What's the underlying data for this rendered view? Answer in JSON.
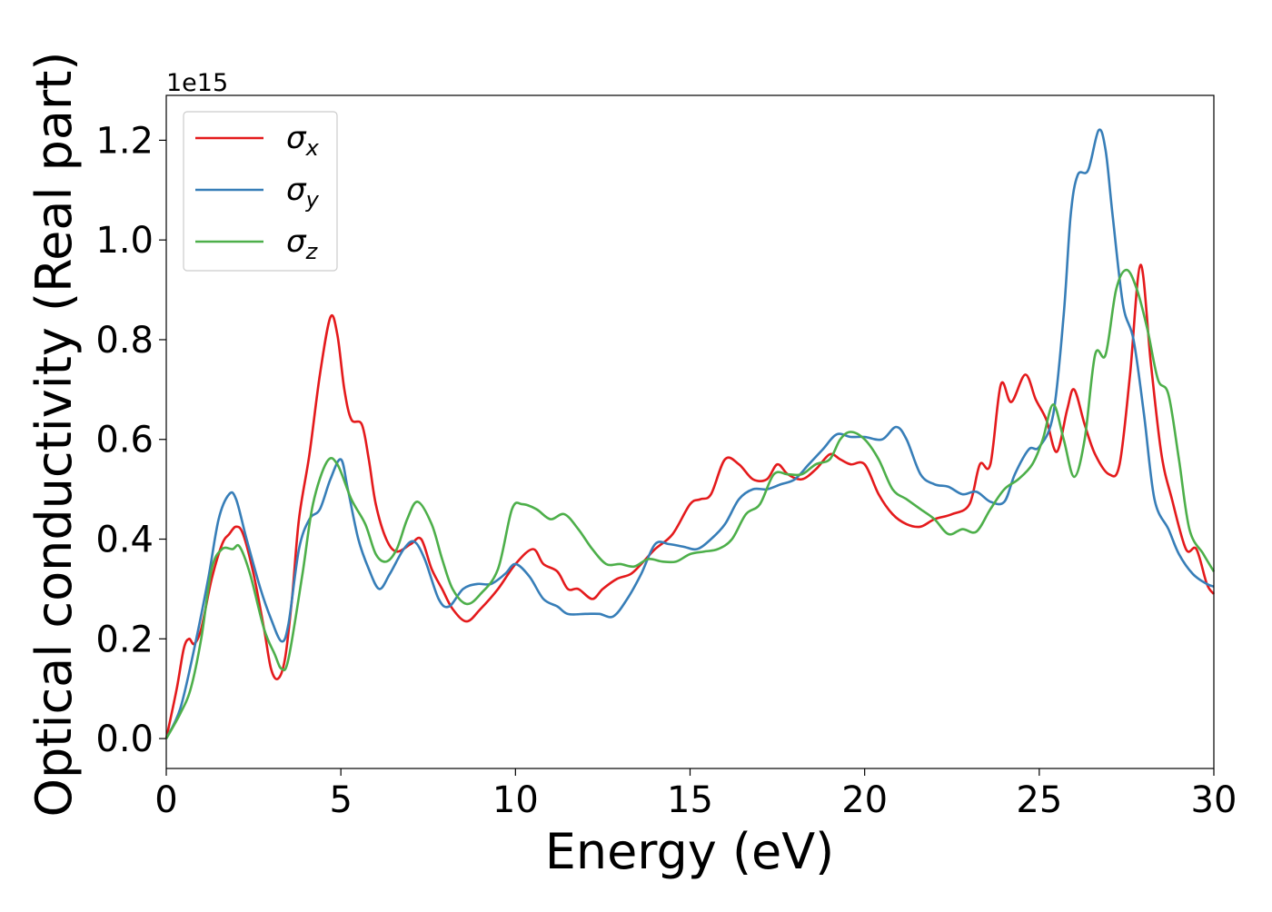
{
  "chart_data": {
    "type": "line",
    "xlabel": "Energy (eV)",
    "ylabel": "Optical conductivity (Real part)",
    "y_offset_text": "1e15",
    "xlim": [
      0,
      30
    ],
    "ylim": [
      -0.06,
      1.29
    ],
    "x_ticks": [
      0,
      5,
      10,
      15,
      20,
      25,
      30
    ],
    "x_tick_labels": [
      "0",
      "5",
      "10",
      "15",
      "20",
      "25",
      "30"
    ],
    "y_ticks": [
      0.0,
      0.2,
      0.4,
      0.6,
      0.8,
      1.0,
      1.2
    ],
    "y_tick_labels": [
      "0.0",
      "0.2",
      "0.4",
      "0.6",
      "0.8",
      "1.0",
      "1.2"
    ],
    "grid": false,
    "legend_position": "top-left",
    "series": [
      {
        "name": "σx",
        "symbol": "σ",
        "subscript": "x",
        "color": "#e41a1c",
        "points": [
          [
            0.0,
            0.0
          ],
          [
            0.3,
            0.1
          ],
          [
            0.5,
            0.18
          ],
          [
            0.65,
            0.2
          ],
          [
            0.8,
            0.19
          ],
          [
            1.0,
            0.22
          ],
          [
            1.3,
            0.32
          ],
          [
            1.6,
            0.39
          ],
          [
            1.8,
            0.41
          ],
          [
            2.0,
            0.425
          ],
          [
            2.2,
            0.41
          ],
          [
            2.5,
            0.33
          ],
          [
            2.8,
            0.22
          ],
          [
            3.0,
            0.14
          ],
          [
            3.2,
            0.12
          ],
          [
            3.4,
            0.16
          ],
          [
            3.6,
            0.28
          ],
          [
            3.8,
            0.44
          ],
          [
            4.1,
            0.57
          ],
          [
            4.4,
            0.73
          ],
          [
            4.7,
            0.845
          ],
          [
            4.9,
            0.81
          ],
          [
            5.1,
            0.7
          ],
          [
            5.3,
            0.64
          ],
          [
            5.6,
            0.63
          ],
          [
            5.8,
            0.56
          ],
          [
            6.0,
            0.47
          ],
          [
            6.3,
            0.4
          ],
          [
            6.6,
            0.375
          ],
          [
            7.0,
            0.39
          ],
          [
            7.3,
            0.4
          ],
          [
            7.6,
            0.34
          ],
          [
            7.9,
            0.3
          ],
          [
            8.2,
            0.26
          ],
          [
            8.6,
            0.235
          ],
          [
            9.0,
            0.26
          ],
          [
            9.5,
            0.3
          ],
          [
            10.0,
            0.35
          ],
          [
            10.5,
            0.38
          ],
          [
            10.8,
            0.35
          ],
          [
            11.2,
            0.335
          ],
          [
            11.5,
            0.3
          ],
          [
            11.8,
            0.3
          ],
          [
            12.2,
            0.28
          ],
          [
            12.5,
            0.3
          ],
          [
            12.9,
            0.32
          ],
          [
            13.3,
            0.33
          ],
          [
            13.6,
            0.35
          ],
          [
            14.0,
            0.38
          ],
          [
            14.5,
            0.41
          ],
          [
            15.0,
            0.47
          ],
          [
            15.3,
            0.48
          ],
          [
            15.6,
            0.49
          ],
          [
            16.0,
            0.56
          ],
          [
            16.4,
            0.55
          ],
          [
            16.8,
            0.52
          ],
          [
            17.2,
            0.52
          ],
          [
            17.5,
            0.55
          ],
          [
            17.8,
            0.53
          ],
          [
            18.2,
            0.52
          ],
          [
            18.6,
            0.54
          ],
          [
            19.0,
            0.57
          ],
          [
            19.3,
            0.56
          ],
          [
            19.6,
            0.55
          ],
          [
            20.0,
            0.55
          ],
          [
            20.4,
            0.49
          ],
          [
            20.8,
            0.45
          ],
          [
            21.2,
            0.43
          ],
          [
            21.6,
            0.425
          ],
          [
            22.0,
            0.44
          ],
          [
            22.5,
            0.45
          ],
          [
            23.0,
            0.47
          ],
          [
            23.3,
            0.55
          ],
          [
            23.6,
            0.55
          ],
          [
            23.9,
            0.71
          ],
          [
            24.2,
            0.675
          ],
          [
            24.6,
            0.73
          ],
          [
            24.9,
            0.68
          ],
          [
            25.2,
            0.64
          ],
          [
            25.5,
            0.575
          ],
          [
            25.8,
            0.66
          ],
          [
            26.0,
            0.7
          ],
          [
            26.3,
            0.63
          ],
          [
            26.6,
            0.57
          ],
          [
            27.0,
            0.53
          ],
          [
            27.3,
            0.55
          ],
          [
            27.6,
            0.73
          ],
          [
            27.9,
            0.95
          ],
          [
            28.2,
            0.75
          ],
          [
            28.5,
            0.57
          ],
          [
            28.8,
            0.48
          ],
          [
            29.2,
            0.38
          ],
          [
            29.5,
            0.38
          ],
          [
            29.8,
            0.31
          ],
          [
            30.0,
            0.29
          ]
        ]
      },
      {
        "name": "σy",
        "symbol": "σ",
        "subscript": "y",
        "color": "#377eb8",
        "points": [
          [
            0.0,
            0.0
          ],
          [
            0.4,
            0.06
          ],
          [
            0.8,
            0.18
          ],
          [
            1.2,
            0.32
          ],
          [
            1.5,
            0.44
          ],
          [
            1.8,
            0.49
          ],
          [
            2.0,
            0.48
          ],
          [
            2.3,
            0.4
          ],
          [
            2.7,
            0.3
          ],
          [
            3.0,
            0.24
          ],
          [
            3.3,
            0.195
          ],
          [
            3.5,
            0.23
          ],
          [
            3.8,
            0.38
          ],
          [
            4.1,
            0.44
          ],
          [
            4.4,
            0.46
          ],
          [
            4.7,
            0.52
          ],
          [
            5.0,
            0.56
          ],
          [
            5.2,
            0.5
          ],
          [
            5.5,
            0.4
          ],
          [
            5.8,
            0.34
          ],
          [
            6.1,
            0.3
          ],
          [
            6.4,
            0.33
          ],
          [
            6.8,
            0.38
          ],
          [
            7.1,
            0.395
          ],
          [
            7.4,
            0.36
          ],
          [
            7.8,
            0.28
          ],
          [
            8.1,
            0.265
          ],
          [
            8.5,
            0.3
          ],
          [
            8.9,
            0.31
          ],
          [
            9.3,
            0.31
          ],
          [
            9.7,
            0.33
          ],
          [
            10.0,
            0.35
          ],
          [
            10.4,
            0.325
          ],
          [
            10.8,
            0.28
          ],
          [
            11.2,
            0.265
          ],
          [
            11.5,
            0.25
          ],
          [
            12.0,
            0.25
          ],
          [
            12.4,
            0.25
          ],
          [
            12.8,
            0.245
          ],
          [
            13.2,
            0.28
          ],
          [
            13.6,
            0.33
          ],
          [
            14.0,
            0.39
          ],
          [
            14.4,
            0.39
          ],
          [
            14.8,
            0.385
          ],
          [
            15.2,
            0.38
          ],
          [
            15.6,
            0.4
          ],
          [
            16.0,
            0.43
          ],
          [
            16.4,
            0.48
          ],
          [
            16.8,
            0.5
          ],
          [
            17.2,
            0.5
          ],
          [
            17.6,
            0.51
          ],
          [
            18.0,
            0.52
          ],
          [
            18.4,
            0.55
          ],
          [
            18.8,
            0.58
          ],
          [
            19.2,
            0.61
          ],
          [
            19.6,
            0.605
          ],
          [
            20.0,
            0.605
          ],
          [
            20.5,
            0.6
          ],
          [
            20.9,
            0.625
          ],
          [
            21.2,
            0.6
          ],
          [
            21.6,
            0.53
          ],
          [
            22.0,
            0.51
          ],
          [
            22.4,
            0.505
          ],
          [
            22.8,
            0.49
          ],
          [
            23.2,
            0.495
          ],
          [
            23.6,
            0.475
          ],
          [
            24.0,
            0.475
          ],
          [
            24.3,
            0.53
          ],
          [
            24.7,
            0.58
          ],
          [
            25.0,
            0.585
          ],
          [
            25.4,
            0.65
          ],
          [
            25.7,
            0.85
          ],
          [
            25.9,
            1.05
          ],
          [
            26.1,
            1.13
          ],
          [
            26.4,
            1.14
          ],
          [
            26.7,
            1.22
          ],
          [
            26.9,
            1.18
          ],
          [
            27.1,
            1.05
          ],
          [
            27.4,
            0.87
          ],
          [
            27.7,
            0.8
          ],
          [
            28.0,
            0.65
          ],
          [
            28.3,
            0.48
          ],
          [
            28.7,
            0.42
          ],
          [
            29.0,
            0.37
          ],
          [
            29.4,
            0.33
          ],
          [
            29.8,
            0.31
          ],
          [
            30.0,
            0.305
          ]
        ]
      },
      {
        "name": "σz",
        "symbol": "σ",
        "subscript": "z",
        "color": "#4daf4a",
        "points": [
          [
            0.0,
            0.0
          ],
          [
            0.4,
            0.05
          ],
          [
            0.7,
            0.1
          ],
          [
            1.0,
            0.2
          ],
          [
            1.3,
            0.34
          ],
          [
            1.6,
            0.38
          ],
          [
            1.9,
            0.38
          ],
          [
            2.1,
            0.385
          ],
          [
            2.4,
            0.33
          ],
          [
            2.8,
            0.22
          ],
          [
            3.1,
            0.17
          ],
          [
            3.3,
            0.14
          ],
          [
            3.5,
            0.16
          ],
          [
            3.9,
            0.33
          ],
          [
            4.2,
            0.47
          ],
          [
            4.6,
            0.555
          ],
          [
            4.9,
            0.55
          ],
          [
            5.3,
            0.48
          ],
          [
            5.7,
            0.43
          ],
          [
            6.0,
            0.37
          ],
          [
            6.3,
            0.355
          ],
          [
            6.6,
            0.38
          ],
          [
            6.9,
            0.44
          ],
          [
            7.2,
            0.475
          ],
          [
            7.6,
            0.43
          ],
          [
            7.9,
            0.36
          ],
          [
            8.2,
            0.3
          ],
          [
            8.6,
            0.27
          ],
          [
            9.0,
            0.29
          ],
          [
            9.5,
            0.34
          ],
          [
            9.9,
            0.46
          ],
          [
            10.2,
            0.47
          ],
          [
            10.6,
            0.46
          ],
          [
            11.0,
            0.44
          ],
          [
            11.4,
            0.45
          ],
          [
            11.8,
            0.42
          ],
          [
            12.2,
            0.38
          ],
          [
            12.6,
            0.35
          ],
          [
            13.0,
            0.35
          ],
          [
            13.4,
            0.345
          ],
          [
            13.8,
            0.36
          ],
          [
            14.2,
            0.355
          ],
          [
            14.6,
            0.355
          ],
          [
            15.0,
            0.37
          ],
          [
            15.4,
            0.375
          ],
          [
            15.8,
            0.38
          ],
          [
            16.2,
            0.4
          ],
          [
            16.6,
            0.45
          ],
          [
            17.0,
            0.47
          ],
          [
            17.4,
            0.53
          ],
          [
            17.8,
            0.53
          ],
          [
            18.2,
            0.53
          ],
          [
            18.6,
            0.55
          ],
          [
            19.0,
            0.56
          ],
          [
            19.3,
            0.6
          ],
          [
            19.6,
            0.615
          ],
          [
            20.0,
            0.6
          ],
          [
            20.4,
            0.56
          ],
          [
            20.8,
            0.5
          ],
          [
            21.2,
            0.48
          ],
          [
            21.6,
            0.46
          ],
          [
            22.0,
            0.44
          ],
          [
            22.4,
            0.41
          ],
          [
            22.8,
            0.42
          ],
          [
            23.2,
            0.415
          ],
          [
            23.6,
            0.46
          ],
          [
            24.0,
            0.5
          ],
          [
            24.4,
            0.52
          ],
          [
            24.8,
            0.55
          ],
          [
            25.1,
            0.6
          ],
          [
            25.4,
            0.67
          ],
          [
            25.7,
            0.6
          ],
          [
            26.0,
            0.525
          ],
          [
            26.3,
            0.6
          ],
          [
            26.6,
            0.77
          ],
          [
            26.9,
            0.77
          ],
          [
            27.2,
            0.9
          ],
          [
            27.5,
            0.94
          ],
          [
            27.8,
            0.9
          ],
          [
            28.1,
            0.82
          ],
          [
            28.4,
            0.72
          ],
          [
            28.7,
            0.69
          ],
          [
            29.0,
            0.56
          ],
          [
            29.3,
            0.42
          ],
          [
            29.7,
            0.37
          ],
          [
            30.0,
            0.335
          ]
        ]
      }
    ]
  }
}
